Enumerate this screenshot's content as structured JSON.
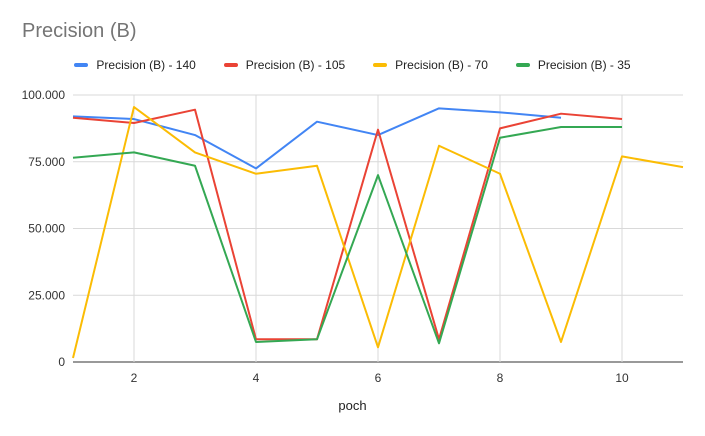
{
  "chart_data": {
    "type": "line",
    "title": "Precision (B)",
    "xlabel": "poch",
    "ylabel": "",
    "xlim": [
      1,
      11
    ],
    "ylim": [
      0,
      100
    ],
    "x_ticks": [
      2,
      4,
      6,
      8,
      10
    ],
    "y_ticks": [
      0,
      25,
      50,
      75,
      100
    ],
    "y_tick_labels": [
      "0",
      "25.000",
      "50.000",
      "75.000",
      "100.000"
    ],
    "grid": true,
    "legend_position": "top",
    "x": [
      1,
      2,
      3,
      4,
      5,
      6,
      7,
      8,
      9,
      10,
      11
    ],
    "series": [
      {
        "name": "Precision (B) - 140",
        "color": "#4285f4",
        "values": [
          92,
          91,
          85,
          72.5,
          90,
          85,
          95,
          93.5,
          91.5,
          null,
          null
        ]
      },
      {
        "name": "Precision (B) - 105",
        "color": "#ea4335",
        "values": [
          91.5,
          89.5,
          94.5,
          8.5,
          8.5,
          87,
          8.5,
          87.5,
          93,
          91,
          null
        ]
      },
      {
        "name": "Precision (B) - 70",
        "color": "#fbbc04",
        "values": [
          1.5,
          95.5,
          78.5,
          70.5,
          73.5,
          5.5,
          81,
          70.5,
          7.5,
          77,
          73
        ]
      },
      {
        "name": "Precision (B) - 35",
        "color": "#34a853",
        "values": [
          76.5,
          78.5,
          73.5,
          7.5,
          8.5,
          70,
          7,
          84,
          88,
          88,
          null
        ]
      }
    ]
  }
}
